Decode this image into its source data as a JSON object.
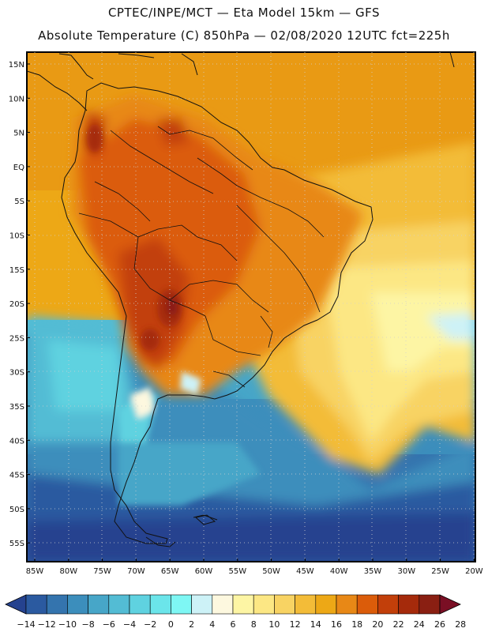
{
  "header": {
    "line1": "CPTEC/INPE/MCT —  Eta Model 15km — GFS",
    "line2": "Absolute Temperature (C) 850hPa — 02/08/2020 12UTC fct=225h"
  },
  "map": {
    "lat_labels": [
      "15N",
      "10N",
      "5N",
      "EQ",
      "5S",
      "10S",
      "15S",
      "20S",
      "25S",
      "30S",
      "35S",
      "40S",
      "45S",
      "50S",
      "55S"
    ],
    "lon_labels": [
      "85W",
      "80W",
      "75W",
      "70W",
      "65W",
      "60W",
      "55W",
      "50W",
      "45W",
      "40W",
      "35W",
      "30W",
      "25W",
      "20W"
    ]
  },
  "colorbar": {
    "colors": [
      "#25428f",
      "#2b5aa0",
      "#3474ae",
      "#3c8ebc",
      "#47a6c8",
      "#53bcd4",
      "#5fd2e0",
      "#6be5ea",
      "#7ef7f4",
      "#cdf2f7",
      "#fdf8df",
      "#fdf5a4",
      "#fce784",
      "#f8d363",
      "#f3bc38",
      "#eda816",
      "#e88816",
      "#db5c0a",
      "#c23f0a",
      "#a52a0b",
      "#8a1f12",
      "#7a0f24"
    ],
    "labels": [
      "-14",
      "-12",
      "-10",
      "-8",
      "-6",
      "-4",
      "-2",
      "0",
      "2",
      "4",
      "6",
      "8",
      "10",
      "12",
      "14",
      "16",
      "18",
      "20",
      "22",
      "24",
      "26",
      "28"
    ]
  }
}
